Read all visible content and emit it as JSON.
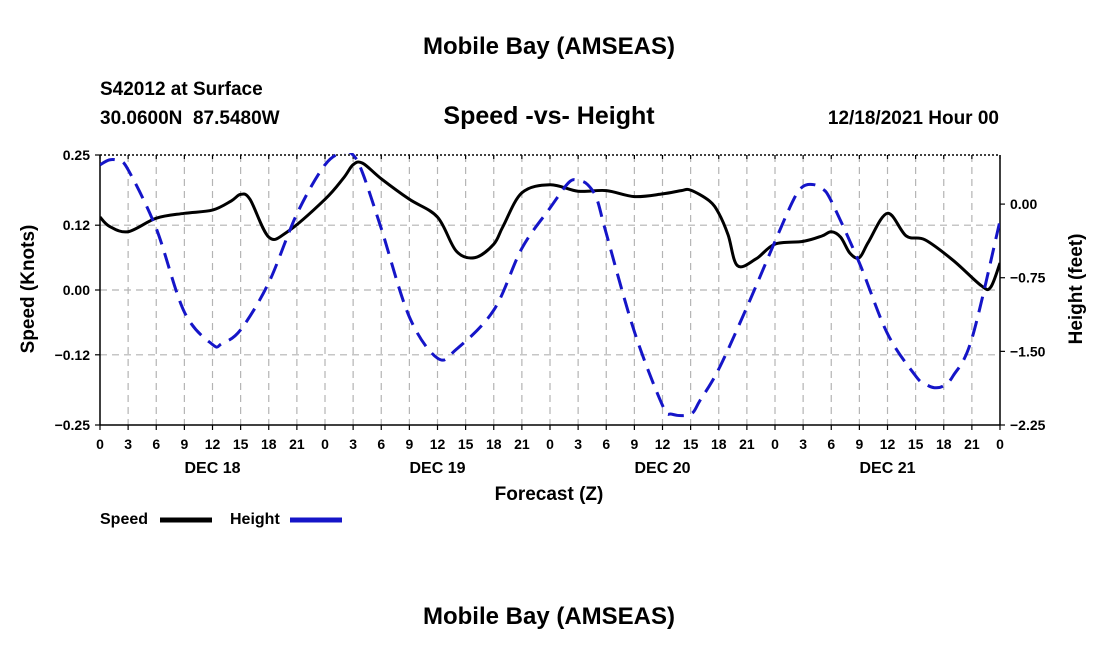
{
  "page_title": "Mobile Bay (AMSEAS)",
  "footer_title": "Mobile Bay (AMSEAS)",
  "station": {
    "id_line": "S42012 at Surface",
    "coords": "30.0600N  87.5480W",
    "datetime": "12/18/2021 Hour 00"
  },
  "colors": {
    "speed": "#000000",
    "height": "#1515c8",
    "grid": "#b4b4b4",
    "frame": "#000000"
  },
  "chart_data": {
    "type": "line",
    "title": "Speed -vs- Height",
    "xlabel": "Forecast (Z)",
    "ylabel_left": "Speed (Knots)",
    "ylabel_right": "Height (feet)",
    "grid": true,
    "legend_placement": "bottom-left",
    "x_unit": "hours since 12/18/2021 00Z",
    "xlim": [
      0,
      96
    ],
    "x_ticks": [
      0,
      3,
      6,
      9,
      12,
      15,
      18,
      21,
      24,
      27,
      30,
      33,
      36,
      39,
      42,
      45,
      48,
      51,
      54,
      57,
      60,
      63,
      66,
      69,
      72,
      75,
      78,
      81,
      84,
      87,
      90,
      93,
      96
    ],
    "x_tick_labels": [
      "0",
      "3",
      "6",
      "9",
      "12",
      "15",
      "18",
      "21",
      "0",
      "3",
      "6",
      "9",
      "12",
      "15",
      "18",
      "21",
      "0",
      "3",
      "6",
      "9",
      "12",
      "15",
      "18",
      "21",
      "0",
      "3",
      "6",
      "9",
      "12",
      "15",
      "18",
      "21",
      "0"
    ],
    "date_labels": [
      {
        "label": "DEC 18",
        "hour": 12
      },
      {
        "label": "DEC 19",
        "hour": 36
      },
      {
        "label": "DEC 20",
        "hour": 60
      },
      {
        "label": "DEC 21",
        "hour": 84
      }
    ],
    "y_left": {
      "range": [
        -0.25,
        0.25
      ],
      "ticks": [
        -0.25,
        -0.12,
        0.0,
        0.12,
        0.25
      ],
      "tick_labels": [
        "−0.25",
        "−0.12",
        "0.00",
        "0.12",
        "0.25"
      ]
    },
    "y_right": {
      "range": [
        -2.25,
        0.5
      ],
      "ticks": [
        -2.25,
        -1.5,
        -0.75,
        0.0
      ],
      "tick_labels": [
        "−2.25",
        "−1.50",
        "−0.75",
        "0.00"
      ]
    },
    "series": [
      {
        "name": "Speed",
        "axis": "left",
        "style": "solid",
        "color": "#000000",
        "x": [
          0,
          1,
          3,
          6,
          9,
          12,
          14,
          15,
          16,
          18,
          20,
          24,
          26,
          27,
          28,
          30,
          33,
          36,
          38,
          40,
          42,
          43,
          45,
          48,
          51,
          54,
          57,
          60,
          62,
          63,
          65,
          66,
          67,
          68,
          70,
          72,
          75,
          77,
          78,
          79,
          80,
          81,
          82,
          84,
          86,
          88,
          91,
          94,
          95,
          96
        ],
        "y": [
          0.135,
          0.118,
          0.108,
          0.133,
          0.142,
          0.148,
          0.165,
          0.177,
          0.168,
          0.098,
          0.108,
          0.168,
          0.208,
          0.232,
          0.235,
          0.206,
          0.168,
          0.135,
          0.072,
          0.06,
          0.085,
          0.118,
          0.18,
          0.195,
          0.183,
          0.184,
          0.173,
          0.178,
          0.184,
          0.185,
          0.165,
          0.142,
          0.102,
          0.045,
          0.058,
          0.085,
          0.09,
          0.1,
          0.108,
          0.098,
          0.068,
          0.06,
          0.09,
          0.142,
          0.1,
          0.093,
          0.055,
          0.008,
          0.005,
          0.05
        ]
      },
      {
        "name": "Height",
        "axis": "right",
        "style": "dashed",
        "color": "#1515c8",
        "x": [
          0,
          1,
          2,
          3,
          6,
          9,
          12,
          13,
          15,
          18,
          21,
          24,
          26,
          27,
          28,
          30,
          33,
          36,
          38,
          42,
          45,
          48,
          50,
          51,
          52,
          53,
          54,
          57,
          60,
          61,
          63,
          64,
          66,
          69,
          72,
          74,
          75,
          76,
          77,
          78,
          81,
          84,
          87,
          88,
          89,
          90,
          91,
          93,
          96
        ],
        "y": [
          0.4,
          0.45,
          0.44,
          0.35,
          -0.25,
          -1.1,
          -1.43,
          -1.42,
          -1.28,
          -0.8,
          -0.1,
          0.4,
          0.53,
          0.5,
          0.32,
          -0.25,
          -1.15,
          -1.57,
          -1.48,
          -1.08,
          -0.45,
          -0.04,
          0.22,
          0.24,
          0.2,
          0.05,
          -0.3,
          -1.3,
          -2.05,
          -2.14,
          -2.14,
          -2.0,
          -1.68,
          -1.05,
          -0.38,
          0.05,
          0.18,
          0.2,
          0.16,
          0.03,
          -0.6,
          -1.32,
          -1.75,
          -1.83,
          -1.87,
          -1.85,
          -1.75,
          -1.37,
          -0.17
        ]
      }
    ]
  }
}
